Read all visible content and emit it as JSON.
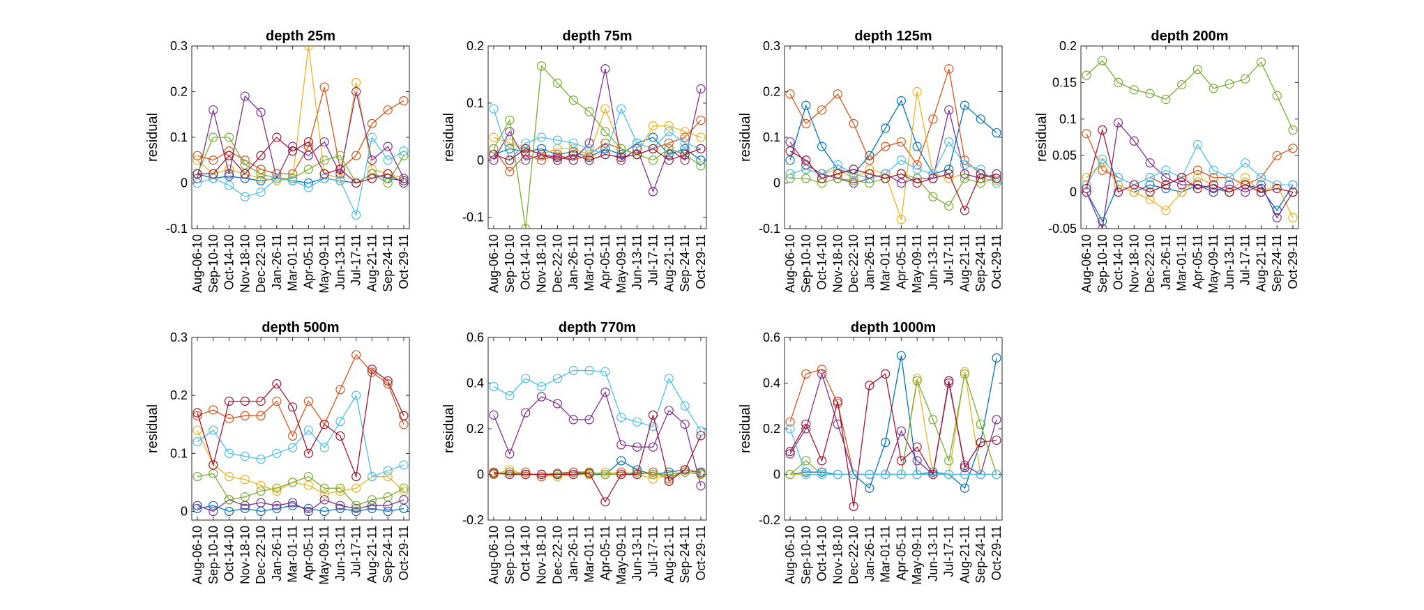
{
  "figure": {
    "background": "#ffffff",
    "line_colors": [
      "#0072BD",
      "#D95319",
      "#EDB120",
      "#7E2F8E",
      "#77AC30",
      "#4DBEEE",
      "#A2142F"
    ]
  },
  "chart_data": [
    {
      "type": "line",
      "title": "depth 25m",
      "ylabel": "residual",
      "ylim": [
        -0.1,
        0.3
      ],
      "yticks": [
        "-0.1",
        "0",
        "0.1",
        "0.2",
        "0.3"
      ],
      "grid": false,
      "categories": [
        "Aug-06-10",
        "Sep-10-10",
        "Oct-14-10",
        "Nov-18-10",
        "Dec-22-10",
        "Jan-26-11",
        "Mar-01-11",
        "Apr-05-11",
        "May-09-11",
        "Jun-13-11",
        "Jul-17-11",
        "Aug-21-11",
        "Sep-24-11",
        "Oct-29-11"
      ],
      "series": [
        {
          "values": [
            0.02,
            0.01,
            0.015,
            0.01,
            0.005,
            0.01,
            0.005,
            0.0,
            0.01,
            0.005,
            0.0,
            0.02,
            0.01,
            0.005
          ]
        },
        {
          "values": [
            0.06,
            0.05,
            0.07,
            0.05,
            0.03,
            0.02,
            0.02,
            0.08,
            0.21,
            0.03,
            0.06,
            0.13,
            0.16,
            0.18
          ]
        },
        {
          "values": [
            0.05,
            0.02,
            0.03,
            0.02,
            0.01,
            0.005,
            0.01,
            0.3,
            0.02,
            0.01,
            0.22,
            0.03,
            0.02,
            0.01
          ]
        },
        {
          "values": [
            0.01,
            0.16,
            0.02,
            0.19,
            0.155,
            0.01,
            0.08,
            0.06,
            0.09,
            0.02,
            0.2,
            0.05,
            0.08,
            0.01
          ]
        },
        {
          "values": [
            0.02,
            0.1,
            0.1,
            0.04,
            0.02,
            0.01,
            0.01,
            0.03,
            0.05,
            0.06,
            0.0,
            0.02,
            0.0,
            0.06
          ]
        },
        {
          "values": [
            0.0,
            0.01,
            -0.005,
            -0.03,
            -0.02,
            0.01,
            0.005,
            -0.01,
            0.01,
            0.005,
            -0.07,
            0.1,
            0.05,
            0.07
          ]
        },
        {
          "values": [
            0.02,
            0.02,
            0.06,
            0.02,
            0.06,
            0.1,
            0.07,
            0.09,
            0.02,
            0.03,
            0.0,
            0.01,
            0.02,
            0.0
          ]
        }
      ]
    },
    {
      "type": "line",
      "title": "depth 75m",
      "ylabel": "residual",
      "ylim": [
        -0.12,
        0.2
      ],
      "yticks": [
        "-0.1",
        "0",
        "0.1",
        "0.2"
      ],
      "grid": false,
      "categories": [
        "Aug-06-10",
        "Sep-10-10",
        "Oct-14-10",
        "Nov-18-10",
        "Dec-22-10",
        "Jan-26-11",
        "Mar-01-11",
        "Apr-05-11",
        "May-09-11",
        "Jun-13-11",
        "Jul-17-11",
        "Aug-21-11",
        "Sep-24-11",
        "Oct-29-11"
      ],
      "series": [
        {
          "values": [
            0.01,
            0.02,
            0.015,
            0.02,
            0.01,
            0.015,
            0.005,
            0.02,
            0.01,
            0.03,
            0.04,
            0.01,
            0.02,
            0.0
          ]
        },
        {
          "values": [
            0.02,
            -0.02,
            0.01,
            0.0,
            0.01,
            0.0,
            0.01,
            0.03,
            0.02,
            0.01,
            0.02,
            0.03,
            0.04,
            0.07
          ]
        },
        {
          "values": [
            0.04,
            0.03,
            0.02,
            0.01,
            0.02,
            0.02,
            0.01,
            0.09,
            0.02,
            0.01,
            0.06,
            0.06,
            0.05,
            0.04
          ]
        },
        {
          "values": [
            0.0,
            0.05,
            0.0,
            0.01,
            0.005,
            0.0,
            0.03,
            0.16,
            0.0,
            0.02,
            -0.055,
            0.02,
            0.0,
            0.125
          ]
        },
        {
          "values": [
            0.02,
            0.07,
            -0.12,
            0.165,
            0.135,
            0.105,
            0.085,
            0.05,
            0.02,
            0.01,
            0.0,
            0.02,
            0.01,
            -0.01
          ]
        },
        {
          "values": [
            0.09,
            0.0,
            0.03,
            0.04,
            0.035,
            0.03,
            0.02,
            0.01,
            0.09,
            0.03,
            0.02,
            0.05,
            0.03,
            0.02
          ]
        },
        {
          "values": [
            0.01,
            0.0,
            0.02,
            0.01,
            0.0,
            0.01,
            0.0,
            0.01,
            0.005,
            0.01,
            0.02,
            0.0,
            0.01,
            0.02
          ]
        }
      ]
    },
    {
      "type": "line",
      "title": "depth 125m",
      "ylabel": "residual",
      "ylim": [
        -0.1,
        0.3
      ],
      "yticks": [
        "-0.1",
        "0",
        "0.1",
        "0.2",
        "0.3"
      ],
      "grid": false,
      "categories": [
        "Aug-06-10",
        "Sep-10-10",
        "Oct-14-10",
        "Nov-18-10",
        "Dec-22-10",
        "Jan-26-11",
        "Mar-01-11",
        "Apr-05-11",
        "May-09-11",
        "Jun-13-11",
        "Jul-17-11",
        "Aug-21-11",
        "Sep-24-11",
        "Oct-29-11"
      ],
      "series": [
        {
          "values": [
            0.05,
            0.17,
            0.08,
            0.03,
            0.02,
            0.06,
            0.12,
            0.18,
            0.08,
            0.02,
            0.03,
            0.17,
            0.14,
            0.11
          ]
        },
        {
          "values": [
            0.195,
            0.13,
            0.16,
            0.195,
            0.13,
            0.05,
            0.08,
            0.09,
            0.04,
            0.14,
            0.25,
            0.05,
            0.02,
            0.01
          ]
        },
        {
          "values": [
            0.02,
            0.03,
            0.02,
            0.03,
            0.01,
            0.03,
            0.02,
            -0.08,
            0.2,
            0.02,
            0.01,
            0.02,
            0.01,
            0.005
          ]
        },
        {
          "values": [
            0.09,
            0.04,
            0.02,
            0.01,
            0.0,
            0.01,
            0.02,
            0.0,
            0.01,
            0.01,
            0.16,
            0.02,
            0.01,
            0.02
          ]
        },
        {
          "values": [
            0.01,
            0.01,
            0.0,
            0.01,
            0.005,
            0.0,
            0.01,
            0.02,
            0.01,
            -0.03,
            -0.05,
            0.01,
            0.0,
            0.01
          ]
        },
        {
          "values": [
            0.02,
            0.03,
            0.02,
            0.04,
            0.02,
            0.01,
            0.02,
            0.05,
            0.03,
            0.02,
            0.09,
            0.04,
            0.03,
            0.0
          ]
        },
        {
          "values": [
            0.07,
            0.05,
            0.01,
            0.02,
            0.03,
            0.02,
            0.01,
            0.02,
            0.0,
            0.01,
            0.02,
            -0.06,
            0.02,
            0.01
          ]
        }
      ]
    },
    {
      "type": "line",
      "title": "depth 200m",
      "ylabel": "residual",
      "ylim": [
        -0.05,
        0.2
      ],
      "yticks": [
        "-0.05",
        "0",
        "0.05",
        "0.1",
        "0.15",
        "0.2"
      ],
      "grid": false,
      "categories": [
        "Aug-06-10",
        "Sep-10-10",
        "Oct-14-10",
        "Nov-18-10",
        "Dec-22-10",
        "Jan-26-11",
        "Mar-01-11",
        "Apr-05-11",
        "May-09-11",
        "Jun-13-11",
        "Jul-17-11",
        "Aug-21-11",
        "Sep-24-11",
        "Oct-29-11"
      ],
      "series": [
        {
          "values": [
            0.0,
            -0.04,
            0.01,
            0.0,
            0.01,
            0.005,
            0.0,
            0.01,
            0.005,
            0.0,
            0.01,
            0.005,
            -0.025,
            0.01
          ]
        },
        {
          "values": [
            0.08,
            0.03,
            0.02,
            0.01,
            0.02,
            0.01,
            0.02,
            0.03,
            0.02,
            0.02,
            0.01,
            0.02,
            0.05,
            0.06
          ]
        },
        {
          "values": [
            0.02,
            0.04,
            0.01,
            0.0,
            -0.01,
            -0.025,
            0.0,
            0.02,
            0.01,
            0.0,
            0.02,
            0.0,
            0.01,
            -0.035
          ]
        },
        {
          "values": [
            0.0,
            -0.05,
            0.095,
            0.07,
            0.04,
            0.02,
            0.01,
            0.01,
            0.0,
            0.01,
            0.0,
            0.01,
            -0.035,
            0.0
          ]
        },
        {
          "values": [
            0.16,
            0.18,
            0.15,
            0.14,
            0.135,
            0.127,
            0.147,
            0.168,
            0.142,
            0.148,
            0.155,
            0.178,
            0.132,
            0.085
          ]
        },
        {
          "values": [
            0.01,
            0.045,
            0.02,
            0.01,
            0.02,
            0.03,
            0.02,
            0.065,
            0.03,
            0.02,
            0.04,
            0.02,
            0.01,
            0.01
          ]
        },
        {
          "values": [
            0.005,
            0.085,
            0.0,
            0.01,
            0.0,
            0.01,
            0.02,
            0.005,
            0.01,
            0.0,
            0.01,
            0.0,
            0.005,
            0.0
          ]
        }
      ]
    },
    {
      "type": "line",
      "title": "depth 500m",
      "ylabel": "residual",
      "ylim": [
        -0.015,
        0.3
      ],
      "yticks": [
        "0",
        "0.1",
        "0.2",
        "0.3"
      ],
      "grid": false,
      "categories": [
        "Aug-06-10",
        "Sep-10-10",
        "Oct-14-10",
        "Nov-18-10",
        "Dec-22-10",
        "Jan-26-11",
        "Mar-01-11",
        "Apr-05-11",
        "May-09-11",
        "Jun-13-11",
        "Jul-17-11",
        "Aug-21-11",
        "Sep-24-11",
        "Oct-29-11"
      ],
      "series": [
        {
          "values": [
            0.005,
            0.01,
            0.0,
            0.005,
            0.0,
            0.005,
            0.01,
            0.005,
            0.0,
            0.005,
            0.0,
            0.005,
            0.0,
            0.005
          ]
        },
        {
          "values": [
            0.165,
            0.175,
            0.16,
            0.165,
            0.165,
            0.19,
            0.13,
            0.19,
            0.15,
            0.21,
            0.27,
            0.24,
            0.22,
            0.15
          ]
        },
        {
          "values": [
            0.14,
            0.08,
            0.06,
            0.055,
            0.045,
            0.035,
            0.05,
            0.045,
            0.03,
            0.035,
            0.04,
            0.06,
            0.06,
            0.035
          ]
        },
        {
          "values": [
            0.01,
            0.0,
            0.02,
            0.01,
            0.015,
            0.01,
            0.015,
            0.0,
            0.02,
            0.01,
            0.005,
            0.01,
            0.01,
            0.02
          ]
        },
        {
          "values": [
            0.06,
            0.065,
            0.02,
            0.025,
            0.035,
            0.04,
            0.05,
            0.06,
            0.04,
            0.04,
            0.01,
            0.02,
            0.025,
            0.04
          ]
        },
        {
          "values": [
            0.12,
            0.14,
            0.1,
            0.095,
            0.09,
            0.1,
            0.11,
            0.14,
            0.11,
            0.155,
            0.2,
            0.06,
            0.07,
            0.08
          ]
        },
        {
          "values": [
            0.17,
            0.08,
            0.19,
            0.19,
            0.19,
            0.22,
            0.18,
            0.1,
            0.15,
            0.13,
            0.06,
            0.245,
            0.225,
            0.165
          ]
        }
      ]
    },
    {
      "type": "line",
      "title": "depth 770m",
      "ylabel": "residual",
      "ylim": [
        -0.2,
        0.6
      ],
      "yticks": [
        "-0.2",
        "0",
        "0.2",
        "0.4",
        "0.6"
      ],
      "grid": false,
      "categories": [
        "Aug-06-10",
        "Sep-10-10",
        "Oct-14-10",
        "Nov-18-10",
        "Dec-22-10",
        "Jan-26-11",
        "Mar-01-11",
        "Apr-05-11",
        "May-09-11",
        "Jun-13-11",
        "Jul-17-11",
        "Aug-21-11",
        "Sep-24-11",
        "Oct-29-11"
      ],
      "series": [
        {
          "values": [
            0.0,
            0.01,
            0.0,
            0.0,
            0.005,
            0.01,
            0.0,
            0.0,
            0.06,
            0.02,
            0.0,
            0.01,
            0.02,
            0.01
          ]
        },
        {
          "values": [
            0.01,
            0.0,
            0.01,
            -0.01,
            0.0,
            0.01,
            0.01,
            0.0,
            0.01,
            0.0,
            0.01,
            -0.02,
            0.02,
            0.005
          ]
        },
        {
          "values": [
            0.0,
            0.02,
            0.0,
            0.0,
            -0.01,
            0.0,
            0.0,
            0.01,
            0.0,
            0.0,
            -0.02,
            0.0,
            0.01,
            0.0
          ]
        },
        {
          "values": [
            0.26,
            0.09,
            0.27,
            0.34,
            0.31,
            0.24,
            0.24,
            0.36,
            0.13,
            0.12,
            0.12,
            0.28,
            0.22,
            -0.05
          ]
        },
        {
          "values": [
            0.0,
            0.01,
            0.0,
            0.0,
            0.005,
            0.0,
            0.01,
            0.0,
            0.0,
            0.01,
            0.0,
            0.0,
            0.01,
            0.0
          ]
        },
        {
          "values": [
            0.385,
            0.345,
            0.42,
            0.385,
            0.42,
            0.455,
            0.455,
            0.45,
            0.25,
            0.23,
            0.21,
            0.42,
            0.3,
            0.19
          ]
        },
        {
          "values": [
            0.005,
            0.0,
            0.0,
            0.0,
            0.0,
            0.0,
            0.005,
            -0.12,
            0.0,
            0.0,
            0.26,
            -0.03,
            0.02,
            0.17
          ]
        }
      ]
    },
    {
      "type": "line",
      "title": "depth 1000m",
      "ylabel": "residual",
      "ylim": [
        -0.2,
        0.6
      ],
      "yticks": [
        "-0.2",
        "0",
        "0.2",
        "0.4",
        "0.6"
      ],
      "grid": false,
      "categories": [
        "Aug-06-10",
        "Sep-10-10",
        "Oct-14-10",
        "Nov-18-10",
        "Dec-22-10",
        "Jan-26-11",
        "Mar-01-11",
        "Apr-05-11",
        "May-09-11",
        "Jun-13-11",
        "Jul-17-11",
        "Aug-21-11",
        "Sep-24-11",
        "Oct-29-11"
      ],
      "series": [
        {
          "values": [
            0.0,
            0.01,
            0.01,
            0.0,
            0.0,
            -0.06,
            0.14,
            0.52,
            0.0,
            0.01,
            0.0,
            -0.06,
            0.14,
            0.51
          ]
        },
        {
          "values": [
            0.23,
            0.44,
            0.46,
            0.31,
            0.0,
            0.0,
            0.0,
            0.0,
            0.0,
            0.0,
            0.0,
            0.0,
            0.0,
            0.0
          ]
        },
        {
          "values": [
            0.0,
            0.0,
            0.0,
            0.0,
            0.0,
            0.0,
            0.0,
            0.0,
            0.42,
            0.0,
            0.0,
            0.45,
            0.0,
            0.0
          ]
        },
        {
          "values": [
            0.09,
            0.2,
            0.44,
            0.22,
            0.0,
            0.0,
            0.0,
            0.19,
            0.06,
            0.0,
            0.4,
            0.04,
            0.0,
            0.24
          ]
        },
        {
          "values": [
            0.0,
            0.06,
            0.0,
            0.0,
            0.0,
            0.0,
            0.0,
            0.0,
            0.41,
            0.24,
            0.06,
            0.44,
            0.22,
            0.0
          ]
        },
        {
          "values": [
            0.2,
            0.0,
            0.0,
            0.0,
            0.0,
            0.0,
            0.0,
            0.0,
            0.0,
            0.0,
            0.0,
            0.0,
            0.0,
            0.0
          ]
        },
        {
          "values": [
            0.1,
            0.22,
            0.06,
            0.32,
            -0.14,
            0.39,
            0.44,
            0.06,
            0.12,
            0.0,
            0.41,
            0.03,
            0.14,
            0.15
          ]
        }
      ]
    }
  ]
}
